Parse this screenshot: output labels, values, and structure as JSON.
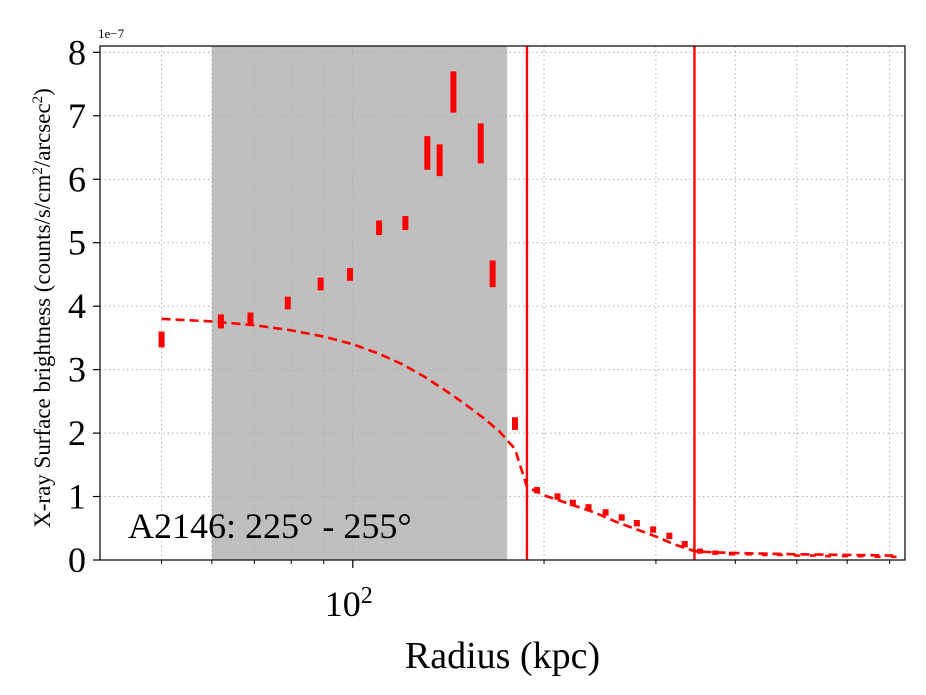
{
  "chart_data": {
    "type": "scatter",
    "title": "",
    "annotation": "A2146: 225° - 255°",
    "xlabel": "Radius (kpc)",
    "ylabel_main": "X-ray Surface brightness (counts/s/cm",
    "ylabel_sup1": "2",
    "ylabel_mid": "/arcsec",
    "ylabel_sup2": "2",
    "ylabel_end": ")",
    "y_offset_text": "1e−7",
    "x_tick_label": "10",
    "x_tick_exp": "2",
    "xscale": "log",
    "xlim": [
      40,
      740
    ],
    "ylim": [
      0,
      8.1
    ],
    "yticks": [
      "0",
      "1",
      "2",
      "3",
      "4",
      "5",
      "6",
      "7",
      "8"
    ],
    "grid": true,
    "shaded_region": [
      60,
      175
    ],
    "vertical_lines": [
      188,
      345
    ],
    "colors": {
      "data": "#ff0000",
      "shade": "#bfbfbf",
      "grid": "#b0b0b0"
    },
    "series": [
      {
        "style": "errorbar",
        "points": [
          {
            "x": 50,
            "ylo": 3.35,
            "yhi": 3.6
          },
          {
            "x": 62,
            "ylo": 3.65,
            "yhi": 3.87
          },
          {
            "x": 69,
            "ylo": 3.7,
            "yhi": 3.9
          },
          {
            "x": 79,
            "ylo": 3.95,
            "yhi": 4.15
          },
          {
            "x": 89,
            "ylo": 4.25,
            "yhi": 4.45
          },
          {
            "x": 99,
            "ylo": 4.4,
            "yhi": 4.6
          },
          {
            "x": 110,
            "ylo": 5.12,
            "yhi": 5.35
          },
          {
            "x": 121,
            "ylo": 5.2,
            "yhi": 5.42
          },
          {
            "x": 131,
            "ylo": 6.15,
            "yhi": 6.68
          },
          {
            "x": 137,
            "ylo": 6.05,
            "yhi": 6.55
          },
          {
            "x": 144,
            "ylo": 7.05,
            "yhi": 7.7
          },
          {
            "x": 159,
            "ylo": 6.25,
            "yhi": 6.88
          },
          {
            "x": 166,
            "ylo": 4.3,
            "yhi": 4.72
          },
          {
            "x": 180,
            "ylo": 2.05,
            "yhi": 2.25
          },
          {
            "x": 195,
            "ylo": 1.05,
            "yhi": 1.15
          },
          {
            "x": 210,
            "ylo": 0.95,
            "yhi": 1.05
          },
          {
            "x": 222,
            "ylo": 0.85,
            "yhi": 0.95
          },
          {
            "x": 235,
            "ylo": 0.78,
            "yhi": 0.88
          },
          {
            "x": 250,
            "ylo": 0.7,
            "yhi": 0.8
          },
          {
            "x": 265,
            "ylo": 0.62,
            "yhi": 0.72
          },
          {
            "x": 280,
            "ylo": 0.53,
            "yhi": 0.63
          },
          {
            "x": 297,
            "ylo": 0.43,
            "yhi": 0.53
          },
          {
            "x": 315,
            "ylo": 0.33,
            "yhi": 0.43
          },
          {
            "x": 333,
            "ylo": 0.2,
            "yhi": 0.3
          },
          {
            "x": 352,
            "ylo": 0.1,
            "yhi": 0.18
          },
          {
            "x": 372,
            "ylo": 0.08,
            "yhi": 0.15
          },
          {
            "x": 395,
            "ylo": 0.07,
            "yhi": 0.13
          },
          {
            "x": 420,
            "ylo": 0.07,
            "yhi": 0.12
          },
          {
            "x": 445,
            "ylo": 0.06,
            "yhi": 0.11
          },
          {
            "x": 470,
            "ylo": 0.06,
            "yhi": 0.1
          },
          {
            "x": 500,
            "ylo": 0.05,
            "yhi": 0.09
          },
          {
            "x": 530,
            "ylo": 0.05,
            "yhi": 0.09
          },
          {
            "x": 560,
            "ylo": 0.04,
            "yhi": 0.08
          },
          {
            "x": 595,
            "ylo": 0.04,
            "yhi": 0.08
          },
          {
            "x": 630,
            "ylo": 0.04,
            "yhi": 0.08
          },
          {
            "x": 670,
            "ylo": 0.03,
            "yhi": 0.07
          },
          {
            "x": 710,
            "ylo": 0.03,
            "yhi": 0.07
          }
        ]
      },
      {
        "style": "dashed",
        "x": [
          50,
          60,
          70,
          80,
          90,
          100,
          110,
          120,
          130,
          140,
          150,
          160,
          170,
          180,
          188,
          200,
          220,
          240,
          260,
          280,
          300,
          320,
          345,
          370,
          400,
          450,
          500,
          550,
          600,
          650,
          700,
          720
        ],
        "y": [
          3.8,
          3.76,
          3.7,
          3.62,
          3.52,
          3.4,
          3.25,
          3.08,
          2.88,
          2.67,
          2.46,
          2.25,
          2.03,
          1.75,
          1.15,
          1.02,
          0.88,
          0.75,
          0.6,
          0.48,
          0.37,
          0.25,
          0.14,
          0.12,
          0.11,
          0.1,
          0.09,
          0.085,
          0.08,
          0.075,
          0.07,
          0.07
        ]
      }
    ]
  }
}
